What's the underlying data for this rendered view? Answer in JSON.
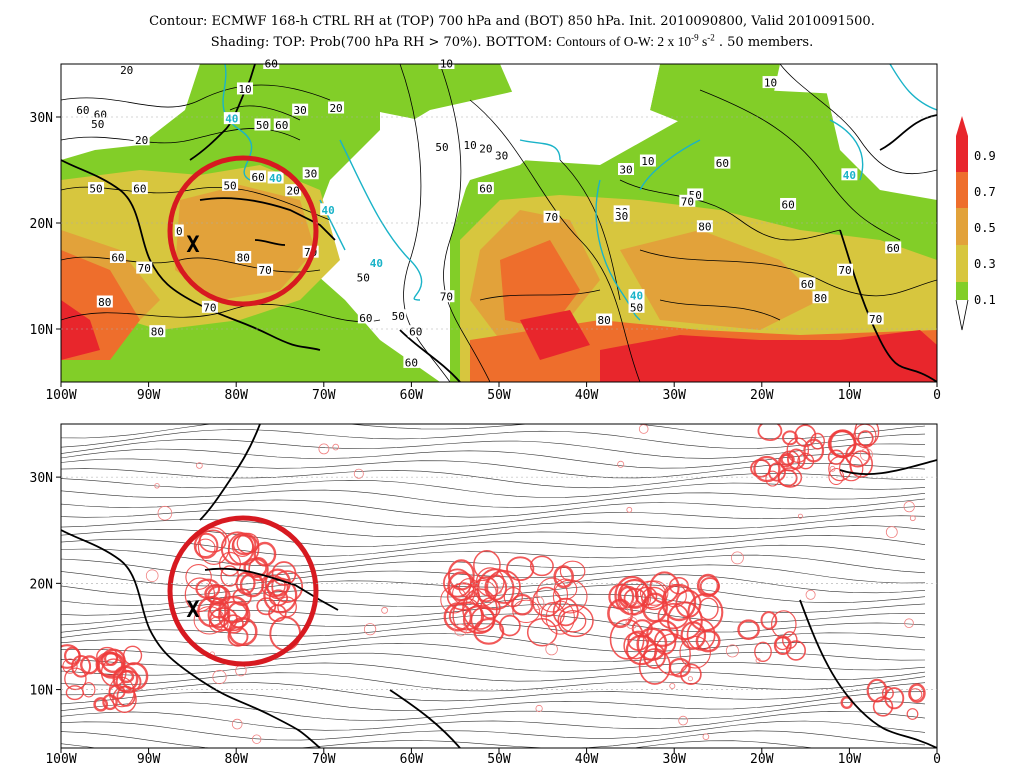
{
  "title": {
    "line1": "Contour: ECMWF 168-h CTRL RH at (TOP) 700 hPa and (BOT) 850 hPa. Init. 2010090800, Valid 2010091500.",
    "line2_a": "Shading: TOP: Prob(700 hPa RH > 70%).  BOTTOM:",
    "line2_ow_a": "Contours of O-W: 2 x 10",
    "line2_ow_exp": "-9",
    "line2_ow_b": " s",
    "line2_ow_exp2": "-2",
    "line2_c": " . 50 members."
  },
  "axes": {
    "lon_labels": [
      "100W",
      "90W",
      "80W",
      "70W",
      "60W",
      "50W",
      "40W",
      "30W",
      "20W",
      "10W",
      "0"
    ],
    "lat_labels": [
      "30N",
      "20N",
      "10N"
    ]
  },
  "colorbar": {
    "labels": [
      "0.9",
      "0.7",
      "0.5",
      "0.3",
      "0.1"
    ],
    "colors": [
      "#e8262c",
      "#ee6e2c",
      "#e2a23a",
      "#d7c63e",
      "#b5d85a",
      "#82ce28"
    ]
  },
  "marker": {
    "symbol": "X"
  },
  "top_panel": {
    "contour_labels": [
      {
        "t": "20",
        "lon": -92.5,
        "lat": 34.4
      },
      {
        "t": "10",
        "lon": -79,
        "lat": 32.6
      },
      {
        "t": "60",
        "lon": -97.5,
        "lat": 30.6
      },
      {
        "t": "60",
        "lon": -95.5,
        "lat": 30.2
      },
      {
        "t": "50",
        "lon": -95.8,
        "lat": 29.3
      },
      {
        "t": "20",
        "lon": -90.8,
        "lat": 27.8
      },
      {
        "t": "50",
        "lon": -77,
        "lat": 29.2
      },
      {
        "t": "60",
        "lon": -74.8,
        "lat": 29.2
      },
      {
        "t": "30",
        "lon": -72.7,
        "lat": 30.6
      },
      {
        "t": "20",
        "lon": -68.6,
        "lat": 30.8
      },
      {
        "t": "40",
        "lon": -80.5,
        "lat": 29.8
      },
      {
        "t": "60",
        "lon": -76,
        "lat": 35
      },
      {
        "t": "10",
        "lon": -56,
        "lat": 35
      },
      {
        "t": "60",
        "lon": -77.5,
        "lat": 24.3
      },
      {
        "t": "50",
        "lon": -80.7,
        "lat": 23.5
      },
      {
        "t": "40",
        "lon": -75.5,
        "lat": 24.2
      },
      {
        "t": "30",
        "lon": -71.5,
        "lat": 24.6
      },
      {
        "t": "20",
        "lon": -73.5,
        "lat": 23
      },
      {
        "t": "50",
        "lon": -96,
        "lat": 23.2
      },
      {
        "t": "60",
        "lon": -91,
        "lat": 23.2
      },
      {
        "t": "40",
        "lon": -69.5,
        "lat": 21.2
      },
      {
        "t": "60",
        "lon": -93.5,
        "lat": 16.7
      },
      {
        "t": "70",
        "lon": -90.5,
        "lat": 15.7
      },
      {
        "t": "80",
        "lon": -79.2,
        "lat": 16.7
      },
      {
        "t": "70",
        "lon": -76.7,
        "lat": 15.5
      },
      {
        "t": "70",
        "lon": -71.5,
        "lat": 17.2
      },
      {
        "t": "0",
        "lon": -86.5,
        "lat": 19.2
      },
      {
        "t": "80",
        "lon": -95,
        "lat": 12.5
      },
      {
        "t": "70",
        "lon": -83,
        "lat": 12
      },
      {
        "t": "80",
        "lon": -89,
        "lat": 9.7
      },
      {
        "t": "40",
        "lon": -64,
        "lat": 16.2
      },
      {
        "t": "50",
        "lon": -65.5,
        "lat": 14.8
      },
      {
        "t": "70",
        "lon": -56,
        "lat": 13
      },
      {
        "t": "50",
        "lon": -61.5,
        "lat": 11.2
      },
      {
        "t": "60",
        "lon": -65.2,
        "lat": 11
      },
      {
        "t": "60",
        "lon": -59.5,
        "lat": 9.7
      },
      {
        "t": "60",
        "lon": -60,
        "lat": 6.8
      },
      {
        "t": "50",
        "lon": -56.5,
        "lat": 27.1
      },
      {
        "t": "10",
        "lon": -53.3,
        "lat": 27.3
      },
      {
        "t": "20",
        "lon": -51.5,
        "lat": 27
      },
      {
        "t": "30",
        "lon": -49.7,
        "lat": 26.3
      },
      {
        "t": "30",
        "lon": -35.5,
        "lat": 25
      },
      {
        "t": "10",
        "lon": -33,
        "lat": 25.8
      },
      {
        "t": "60",
        "lon": -51.5,
        "lat": 23.2
      },
      {
        "t": "70",
        "lon": -44,
        "lat": 20.5
      },
      {
        "t": "30",
        "lon": -36,
        "lat": 21
      },
      {
        "t": "30",
        "lon": -36,
        "lat": 20.6
      },
      {
        "t": "50",
        "lon": -27.6,
        "lat": 22.6
      },
      {
        "t": "70",
        "lon": -28.5,
        "lat": 22
      },
      {
        "t": "80",
        "lon": -26.5,
        "lat": 19.6
      },
      {
        "t": "60",
        "lon": -24.5,
        "lat": 25.6
      },
      {
        "t": "10",
        "lon": -19,
        "lat": 33.2
      },
      {
        "t": "60",
        "lon": -17,
        "lat": 21.7
      },
      {
        "t": "40",
        "lon": -10,
        "lat": 24.5
      },
      {
        "t": "60",
        "lon": -5,
        "lat": 17.6
      },
      {
        "t": "70",
        "lon": -10.5,
        "lat": 15.5
      },
      {
        "t": "60",
        "lon": -14.8,
        "lat": 14.2
      },
      {
        "t": "80",
        "lon": -13.3,
        "lat": 12.9
      },
      {
        "t": "70",
        "lon": -7,
        "lat": 10.9
      },
      {
        "t": "40",
        "lon": -34.3,
        "lat": 13.1
      },
      {
        "t": "50",
        "lon": -34.3,
        "lat": 12
      },
      {
        "t": "80",
        "lon": -38,
        "lat": 10.8
      }
    ]
  }
}
